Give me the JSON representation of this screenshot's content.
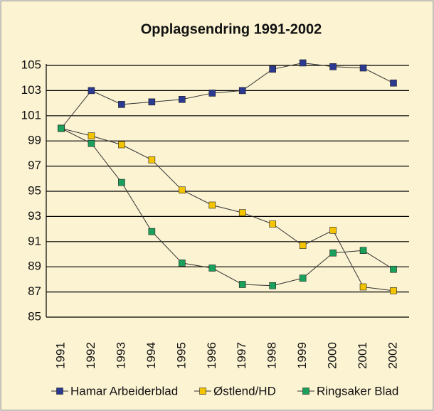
{
  "chart_data": {
    "type": "line",
    "title": "Opplagsendring 1991-2002",
    "categories": [
      "1991",
      "1992",
      "1993",
      "1994",
      "1995",
      "1996",
      "1997",
      "1998",
      "1999",
      "2000",
      "2001",
      "2002"
    ],
    "series": [
      {
        "name": "Hamar Arbeiderblad",
        "color": "#2b3990",
        "values": [
          100,
          103,
          101.9,
          102.1,
          102.3,
          102.8,
          103,
          104.7,
          105.2,
          104.9,
          104.8,
          103.6
        ]
      },
      {
        "name": "Østlend/HD",
        "color": "#f5c400",
        "values": [
          100,
          99.4,
          98.7,
          97.5,
          95.1,
          93.9,
          93.3,
          92.4,
          90.7,
          91.9,
          87.4,
          87.1
        ]
      },
      {
        "name": "Ringsaker Blad",
        "color": "#1aa05a",
        "values": [
          100,
          98.8,
          95.7,
          91.8,
          89.3,
          88.9,
          87.6,
          87.5,
          88.1,
          90.1,
          90.3,
          88.8
        ]
      }
    ],
    "ylim": [
      85,
      105
    ],
    "yticks": [
      85,
      87,
      89,
      91,
      93,
      95,
      97,
      99,
      101,
      103,
      105
    ],
    "grid": true,
    "legend": "bottom"
  }
}
